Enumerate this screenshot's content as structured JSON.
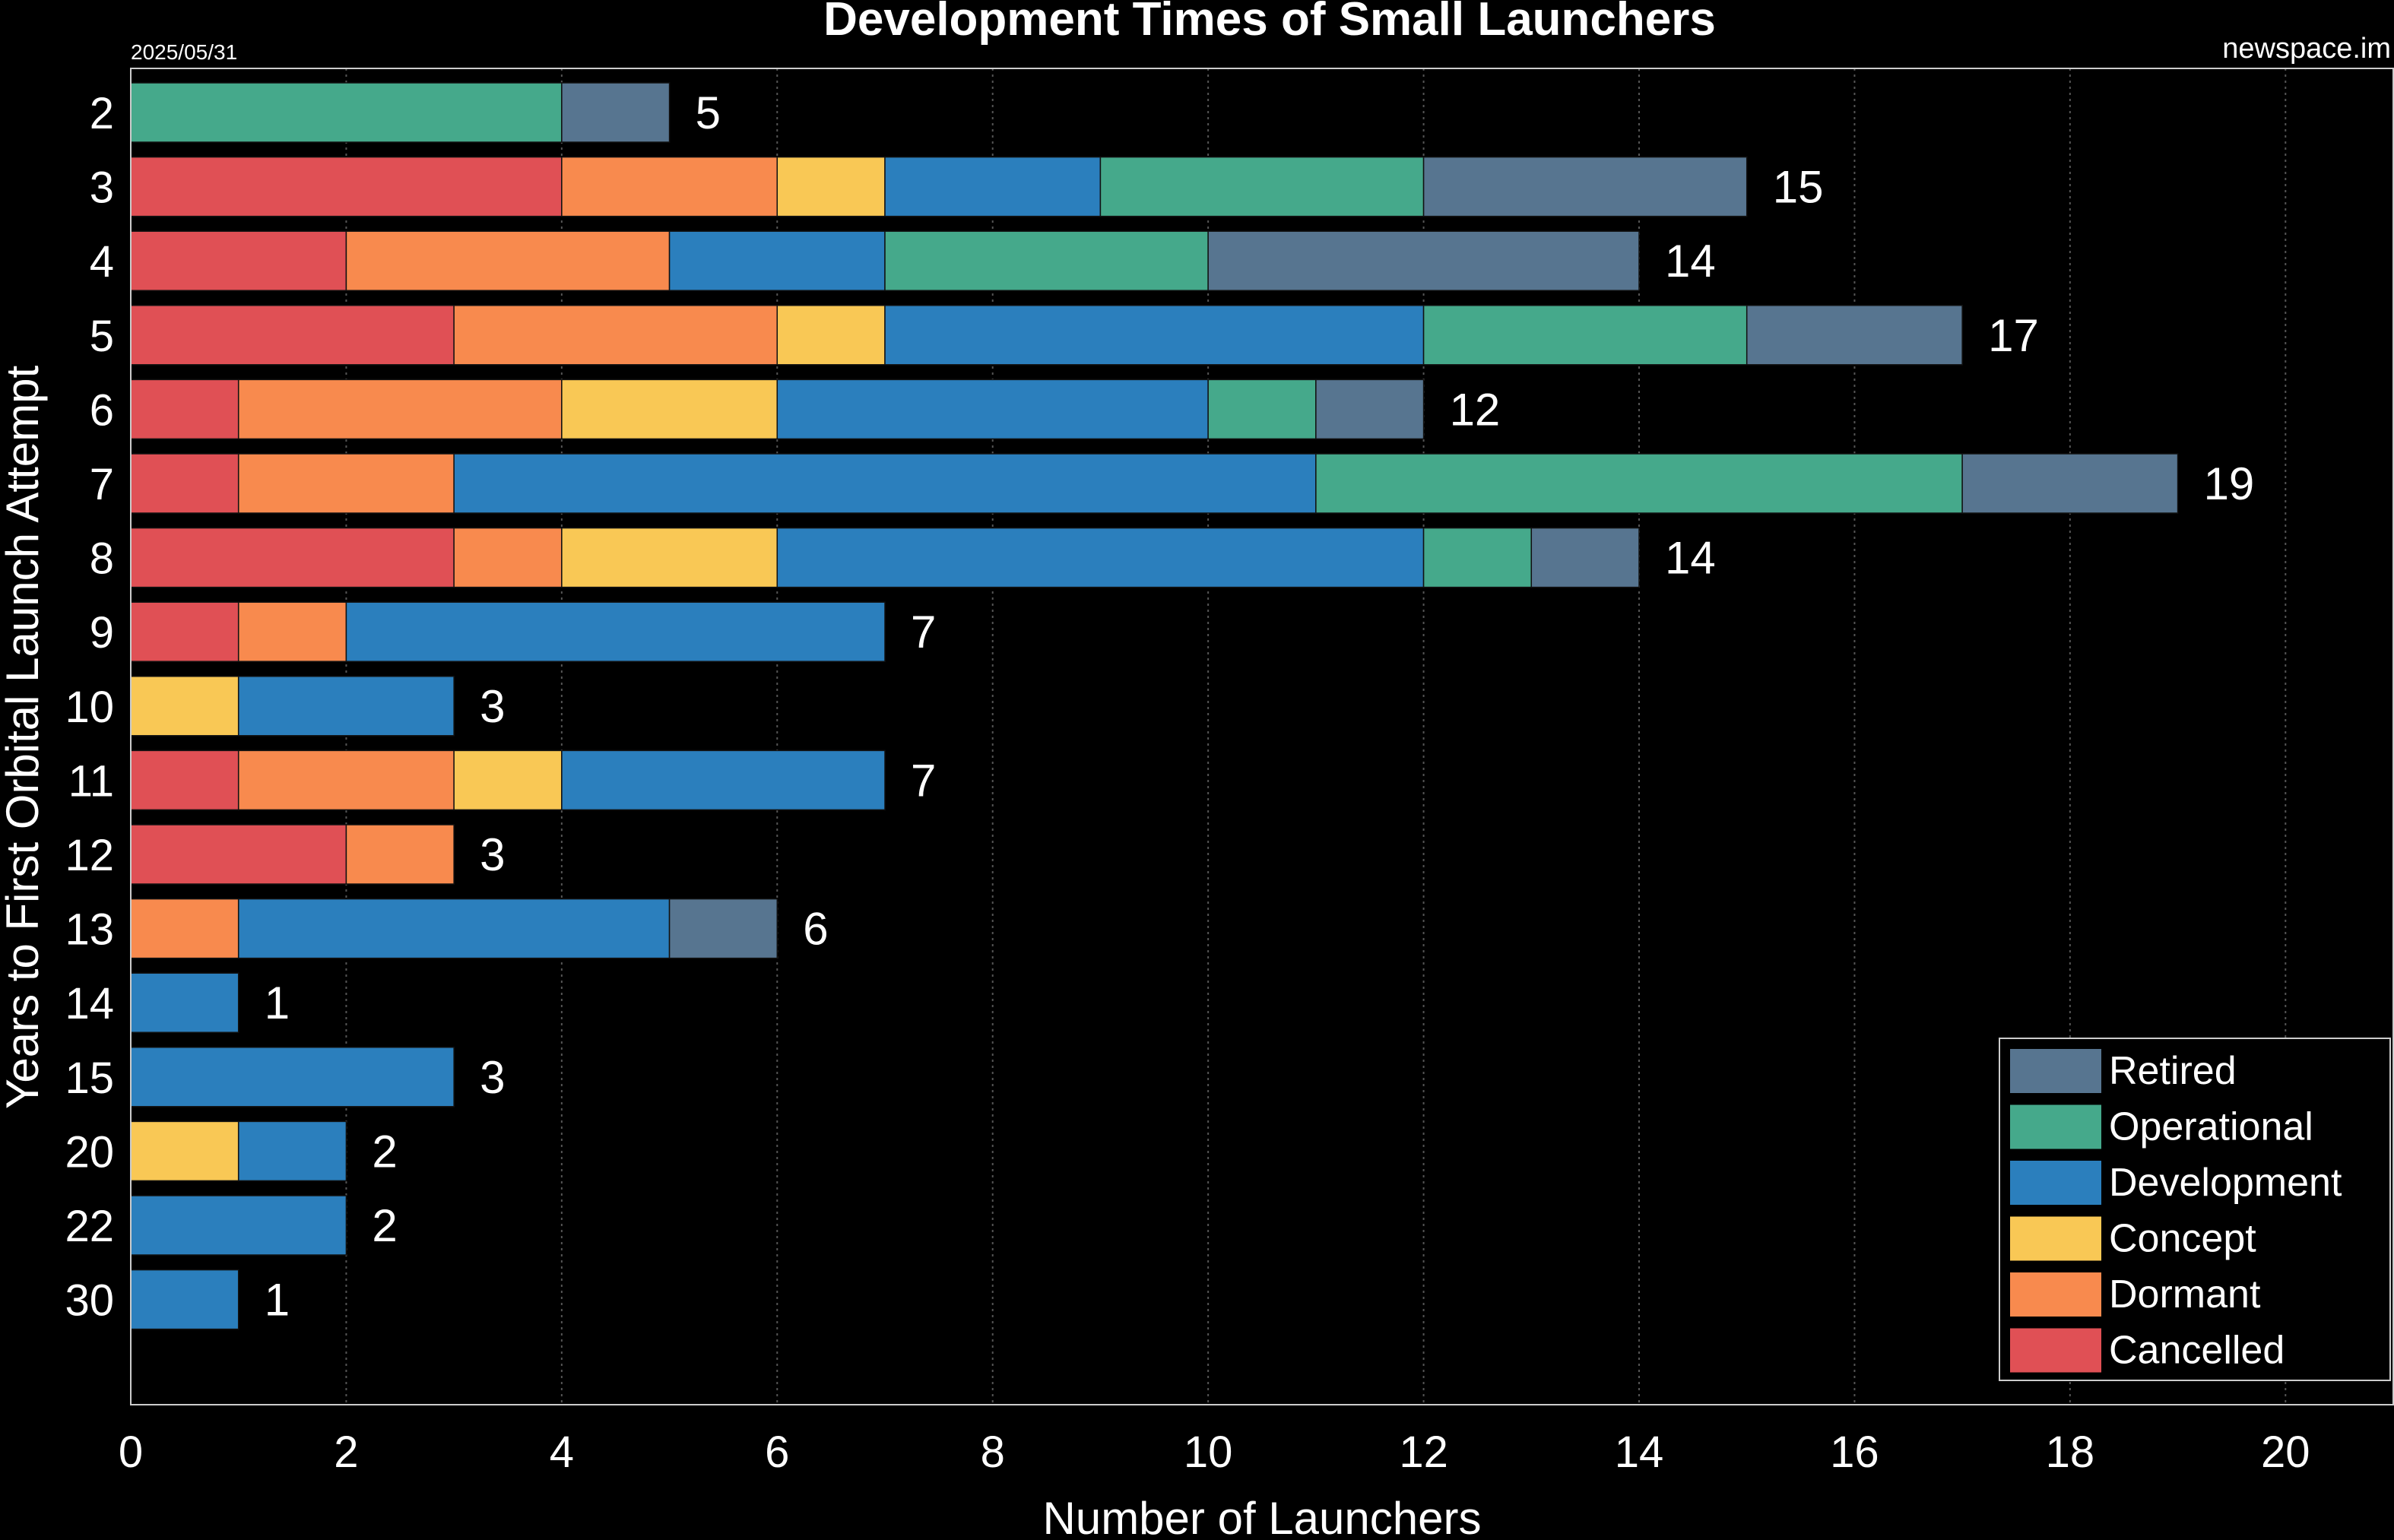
{
  "chart_data": {
    "type": "bar",
    "orientation": "horizontal",
    "stacked": true,
    "title": "Development Times of Small Launchers",
    "date": "2025/05/31",
    "source": "newspace.im",
    "xlabel": "Number of Launchers",
    "ylabel": "Years to First Orbital Launch Attempt",
    "xlim": [
      0,
      21
    ],
    "xticks": [
      "0",
      "2",
      "4",
      "6",
      "8",
      "10",
      "12",
      "14",
      "16",
      "18",
      "20"
    ],
    "grid": "vertical dotted",
    "legend_position": "bottom-right",
    "categories": [
      "2",
      "3",
      "4",
      "5",
      "6",
      "7",
      "8",
      "9",
      "10",
      "11",
      "12",
      "13",
      "14",
      "15",
      "20",
      "22",
      "30"
    ],
    "totals": [
      "5",
      "15",
      "14",
      "17",
      "12",
      "19",
      "14",
      "7",
      "3",
      "7",
      "3",
      "6",
      "1",
      "3",
      "2",
      "2",
      "1"
    ],
    "series": [
      {
        "name": "Cancelled",
        "color": "#e05055",
        "values": [
          0,
          4,
          2,
          3,
          1,
          1,
          3,
          1,
          0,
          1,
          2,
          0,
          0,
          0,
          0,
          0,
          0
        ]
      },
      {
        "name": "Dormant",
        "color": "#f88a4e",
        "values": [
          0,
          2,
          3,
          3,
          3,
          2,
          1,
          1,
          0,
          2,
          1,
          1,
          0,
          0,
          0,
          0,
          0
        ]
      },
      {
        "name": "Concept",
        "color": "#f9c855",
        "values": [
          0,
          1,
          0,
          1,
          2,
          0,
          2,
          0,
          1,
          1,
          0,
          0,
          0,
          0,
          1,
          0,
          0
        ]
      },
      {
        "name": "Development",
        "color": "#2b7fbd",
        "values": [
          0,
          2,
          2,
          5,
          4,
          8,
          6,
          5,
          2,
          3,
          0,
          4,
          1,
          3,
          1,
          2,
          1
        ]
      },
      {
        "name": "Operational",
        "color": "#45a98b",
        "values": [
          4,
          3,
          3,
          3,
          1,
          6,
          1,
          0,
          0,
          0,
          0,
          0,
          0,
          0,
          0,
          0,
          0
        ]
      },
      {
        "name": "Retired",
        "color": "#577590",
        "values": [
          1,
          3,
          4,
          2,
          1,
          2,
          1,
          0,
          0,
          0,
          0,
          1,
          0,
          0,
          0,
          0,
          0
        ]
      }
    ]
  }
}
